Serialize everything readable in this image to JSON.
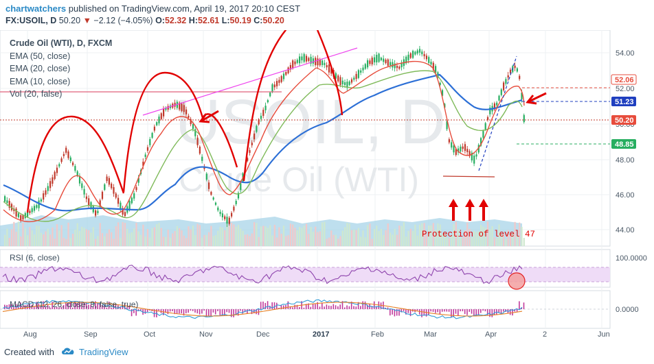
{
  "header": {
    "user": "chartwatchers",
    "published_text": " published on TradingView.com, April 19, 2017 20:10 CEST",
    "symbol": "FX:USOIL, D",
    "last": "50.20",
    "arrow": "▼",
    "change": "−2.12 (−4.05%)",
    "o_label": "O:",
    "o_value": "52.32",
    "h_label": "H:",
    "h_value": "52.61",
    "l_label": "L:",
    "l_value": "50.19",
    "c_label": "C:",
    "c_value": "50.20"
  },
  "legend": {
    "title": "Crude Oil (WTI), D, FXCM",
    "ema50": "EMA (50, close)",
    "ema20": "EMA (20, close)",
    "ema10": "EMA (10, close)",
    "vol": "Vol (20, false)"
  },
  "watermark": {
    "symbol": "USOIL, D",
    "name": "Crude Oil (WTI)"
  },
  "price_axis": {
    "ticks": [
      "54.00",
      "52.00",
      "50.00",
      "48.00",
      "46.00",
      "44.00"
    ],
    "badges": [
      {
        "label": "52.06",
        "color": "#e74c3c"
      },
      {
        "label": "51.23",
        "color": "#1f3fbf"
      },
      {
        "label": "50.20",
        "color": "#e74c3c"
      },
      {
        "label": "48.85",
        "color": "#27ae60"
      }
    ]
  },
  "annotation": {
    "protection_text": "Protection of level 47"
  },
  "rsi": {
    "label": "RSI (6, close)",
    "tick": "100.0000"
  },
  "macd": {
    "label": "MACD (12, 26, close, 9, false, true)",
    "tick": "0.0000"
  },
  "time_axis": [
    "Aug",
    "Sep",
    "Oct",
    "Nov",
    "Dec",
    "2017",
    "Feb",
    "Mar",
    "Apr",
    "2",
    "Jun"
  ],
  "colors": {
    "up": "#27ae60",
    "down": "#c0392b",
    "ema50": "#2c6fd6",
    "ema20": "#7fba5a",
    "ema10": "#e74c3c",
    "annotation": "#e10000",
    "rsi_line": "#8e44ad",
    "rsi_band": "#efdcf7",
    "volume": "#a8d4e8"
  },
  "footer": {
    "created_with": "Created with",
    "brand": "TradingView"
  }
}
